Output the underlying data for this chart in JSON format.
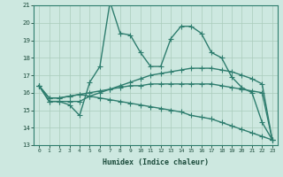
{
  "xlabel": "Humidex (Indice chaleur)",
  "ylabel": "",
  "xlim": [
    -0.5,
    23.5
  ],
  "ylim": [
    13,
    21
  ],
  "yticks": [
    13,
    14,
    15,
    16,
    17,
    18,
    19,
    20,
    21
  ],
  "xticks": [
    0,
    1,
    2,
    3,
    4,
    5,
    6,
    7,
    8,
    9,
    10,
    11,
    12,
    13,
    14,
    15,
    16,
    17,
    18,
    19,
    20,
    21,
    22,
    23
  ],
  "bg_color": "#cde8e0",
  "grid_color": "#aaccbb",
  "line_color": "#2e7d6e",
  "line_width": 1.0,
  "marker": "+",
  "marker_size": 4,
  "lines": [
    [
      16.4,
      15.5,
      15.5,
      15.3,
      14.7,
      16.6,
      17.5,
      21.2,
      19.4,
      19.3,
      18.3,
      17.5,
      17.5,
      19.1,
      19.8,
      19.8,
      19.4,
      18.3,
      18.0,
      16.9,
      16.3,
      16.0,
      14.3,
      13.3
    ],
    [
      16.4,
      15.5,
      15.5,
      15.5,
      15.5,
      15.8,
      16.0,
      16.2,
      16.4,
      16.6,
      16.8,
      17.0,
      17.1,
      17.2,
      17.3,
      17.4,
      17.4,
      17.4,
      17.3,
      17.2,
      17.0,
      16.8,
      16.5,
      13.3
    ],
    [
      16.4,
      15.7,
      15.7,
      15.8,
      15.9,
      16.0,
      16.1,
      16.2,
      16.3,
      16.4,
      16.4,
      16.5,
      16.5,
      16.5,
      16.5,
      16.5,
      16.5,
      16.5,
      16.4,
      16.3,
      16.2,
      16.1,
      16.0,
      13.3
    ],
    [
      16.4,
      15.7,
      15.7,
      15.8,
      15.9,
      15.8,
      15.7,
      15.6,
      15.5,
      15.4,
      15.3,
      15.2,
      15.1,
      15.0,
      14.9,
      14.7,
      14.6,
      14.5,
      14.3,
      14.1,
      13.9,
      13.7,
      13.5,
      13.3
    ]
  ]
}
